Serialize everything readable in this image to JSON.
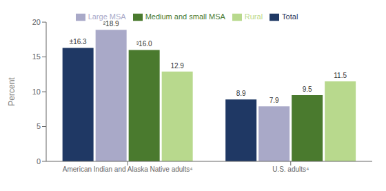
{
  "chart_data": {
    "type": "bar",
    "categories": [
      "American Indian and Alaska Native adults⁴",
      "U.S. adults⁴"
    ],
    "series": [
      {
        "name": "Total",
        "color": "#1f3864",
        "values": [
          16.3,
          8.9
        ],
        "value_labels": [
          "±16.3",
          "8.9"
        ]
      },
      {
        "name": "Large MSA",
        "color": "#a9a9c8",
        "values": [
          18.9,
          7.9
        ],
        "value_labels": [
          "²18.9",
          "7.9"
        ]
      },
      {
        "name": "Medium and small MSA",
        "color": "#4a7a2e",
        "values": [
          16.0,
          9.5
        ],
        "value_labels": [
          "³16.0",
          "9.5"
        ]
      },
      {
        "name": "Rural",
        "color": "#b8d98d",
        "values": [
          12.9,
          11.5
        ],
        "value_labels": [
          "12.9",
          "11.5"
        ]
      }
    ],
    "ylabel": "Percent",
    "ylim": [
      0,
      20
    ],
    "yticks": [
      0,
      5,
      10,
      15,
      20
    ],
    "data_labels": true,
    "legend": "top",
    "grid": false
  }
}
